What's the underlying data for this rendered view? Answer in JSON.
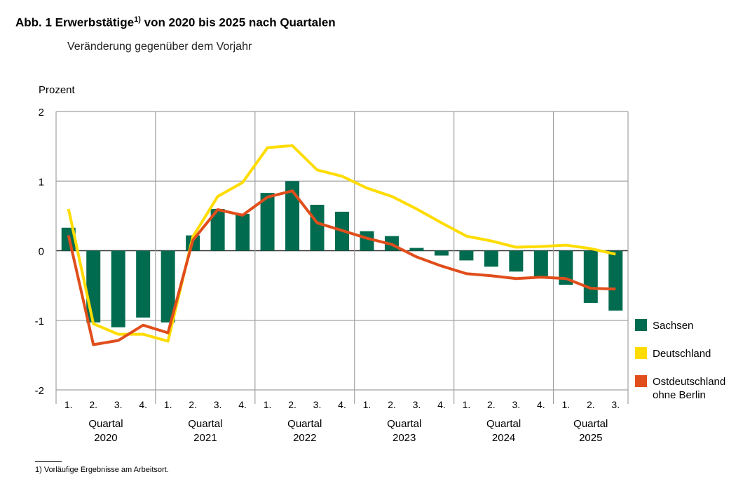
{
  "title": {
    "prefix": "Abb. 1  Erwerbstätige",
    "sup": "1)",
    "suffix": " von 2020 bis 2025 nach Quartalen"
  },
  "subtitle": "Veränderung gegenüber dem Vorjahr",
  "footnote": "1) Vorläufige Ergebnisse am Arbeitsort.",
  "chart_data": {
    "type": "bar+line",
    "ylabel": "Prozent",
    "ylim": [
      -2,
      2
    ],
    "yticks": [
      2,
      1,
      0,
      -1,
      -2
    ],
    "ytick_labels": [
      "2",
      "1",
      "0",
      "-1",
      "-2"
    ],
    "grid": true,
    "legend_placement": "right",
    "quarter_labels": [
      "1.",
      "2.",
      "3.",
      "4.",
      "1.",
      "2.",
      "3.",
      "4.",
      "1.",
      "2.",
      "3.",
      "4.",
      "1.",
      "2.",
      "3.",
      "4.",
      "1.",
      "2.",
      "3.",
      "4.",
      "1.",
      "2.",
      "3."
    ],
    "groups": [
      {
        "label": "Quartal",
        "year": "2020",
        "count": 4
      },
      {
        "label": "Quartal",
        "year": "2021",
        "count": 4
      },
      {
        "label": "Quartal",
        "year": "2022",
        "count": 4
      },
      {
        "label": "Quartal",
        "year": "2023",
        "count": 4
      },
      {
        "label": "Quartal",
        "year": "2024",
        "count": 4
      },
      {
        "label": "Quartal",
        "year": "2025",
        "count": 3
      }
    ],
    "series": [
      {
        "name": "Sachsen",
        "kind": "bar",
        "color": "#006b4f",
        "values": [
          0.33,
          -1.03,
          -1.1,
          -0.96,
          -1.03,
          0.22,
          0.6,
          0.53,
          0.83,
          1.0,
          0.66,
          0.56,
          0.28,
          0.21,
          0.04,
          -0.07,
          -0.14,
          -0.23,
          -0.3,
          -0.37,
          -0.49,
          -0.75,
          -0.86
        ]
      },
      {
        "name": "Deutschland",
        "kind": "line",
        "color": "#ffdc00",
        "values": [
          0.6,
          -1.05,
          -1.2,
          -1.2,
          -1.3,
          0.2,
          0.78,
          0.98,
          1.48,
          1.51,
          1.16,
          1.07,
          0.9,
          0.78,
          0.6,
          0.4,
          0.21,
          0.14,
          0.05,
          0.06,
          0.08,
          0.03,
          -0.05
        ]
      },
      {
        "name": "Ostdeutschland ohne Berlin",
        "name_lines": [
          "Ostdeutschland",
          "ohne Berlin"
        ],
        "kind": "line",
        "color": "#e04e1b",
        "values": [
          0.22,
          -1.35,
          -1.29,
          -1.07,
          -1.18,
          0.15,
          0.59,
          0.51,
          0.77,
          0.86,
          0.4,
          0.29,
          0.18,
          0.09,
          -0.09,
          -0.22,
          -0.33,
          -0.36,
          -0.4,
          -0.38,
          -0.4,
          -0.54,
          -0.55
        ]
      }
    ]
  }
}
